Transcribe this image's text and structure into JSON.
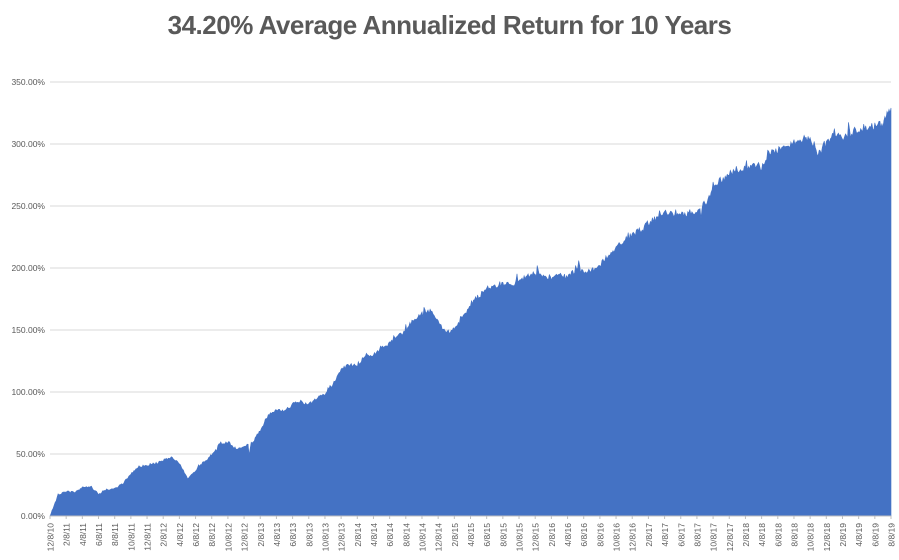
{
  "chart_data": {
    "type": "area",
    "title": "34.20% Average Annualized Return for 10 Years",
    "legend": "none",
    "gridlines": "horizontal",
    "fill_color": "#4472C4",
    "background_color": "#FFFFFF",
    "grid_color": "#D9D9D9",
    "axis_color": "#BFBFBF",
    "label_color": "#595959",
    "title_color": "#595959",
    "yaxis": {
      "min": 0,
      "max": 350,
      "tick_step": 50,
      "tick_labels": [
        "0.00%",
        "50.00%",
        "100.00%",
        "150.00%",
        "200.00%",
        "250.00%",
        "300.00%",
        "350.00%"
      ]
    },
    "xaxis": {
      "months_per_tick": 2,
      "tick_labels": [
        "12/8/10",
        "2/8/11",
        "4/8/11",
        "6/8/11",
        "8/8/11",
        "10/8/11",
        "12/8/11",
        "2/8/12",
        "4/8/12",
        "6/8/12",
        "8/8/12",
        "10/8/12",
        "12/8/12",
        "2/8/13",
        "4/8/13",
        "6/8/13",
        "8/8/13",
        "10/8/13",
        "12/8/13",
        "2/8/14",
        "4/8/14",
        "6/8/14",
        "8/8/14",
        "10/8/14",
        "12/8/14",
        "2/8/15",
        "4/8/15",
        "6/8/15",
        "8/8/15",
        "10/8/15",
        "12/8/15",
        "2/8/16",
        "4/8/16",
        "6/8/16",
        "8/8/16",
        "10/8/16",
        "12/8/16",
        "2/8/17",
        "4/8/17",
        "6/8/17",
        "8/8/17",
        "10/8/17",
        "12/8/17",
        "2/8/18",
        "4/8/18",
        "6/8/18",
        "8/8/18",
        "10/8/18",
        "12/8/18",
        "2/8/19",
        "4/8/19",
        "6/8/19",
        "8/8/19"
      ]
    },
    "series_start_month": "12/8/10",
    "monthly_values_pct": [
      0,
      17,
      20,
      19,
      23,
      24,
      18,
      21,
      22,
      26,
      34,
      40,
      41,
      42,
      45,
      47,
      43,
      30,
      37,
      43,
      49,
      58,
      60,
      54,
      56,
      60,
      69,
      81,
      86,
      84,
      91,
      92,
      90,
      95,
      99,
      106,
      118,
      122,
      122,
      128,
      130,
      136,
      140,
      147,
      150,
      158,
      164,
      166,
      156,
      148,
      150,
      161,
      170,
      178,
      183,
      186,
      187,
      186,
      189,
      193,
      196,
      194,
      192,
      195,
      193,
      199,
      197,
      198,
      203,
      210,
      216,
      222,
      228,
      231,
      236,
      242,
      245,
      243,
      244,
      244,
      245,
      250,
      266,
      271,
      276,
      279,
      281,
      284,
      280,
      294,
      297,
      298,
      300,
      303,
      306,
      291,
      302,
      309,
      307,
      310,
      312,
      313,
      314,
      317,
      328
    ],
    "notable_spikes_pct": [
      {
        "month_offset": 24.6,
        "pct": 49
      },
      {
        "month_offset": 60.3,
        "pct": 202
      },
      {
        "month_offset": 65.4,
        "pct": 206
      },
      {
        "month_offset": 104.0,
        "pct": 329
      }
    ]
  }
}
